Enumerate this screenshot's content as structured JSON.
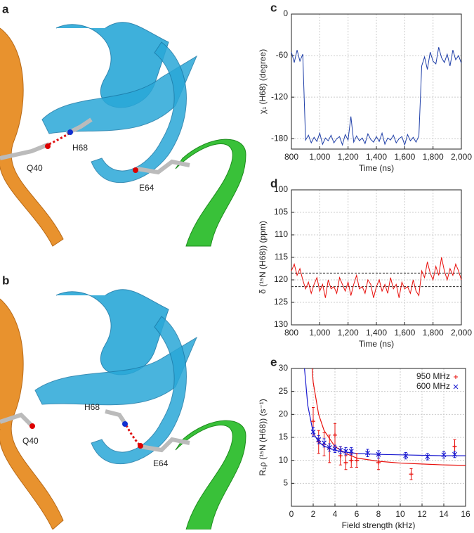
{
  "panels": {
    "a": {
      "label": "a",
      "residues": [
        "Q40",
        "H68",
        "E64"
      ]
    },
    "b": {
      "label": "b",
      "residues": [
        "Q40",
        "H68",
        "E64"
      ]
    }
  },
  "chart_data": [
    {
      "type": "line",
      "panel_label": "c",
      "xlabel": "Time (ns)",
      "ylabel": "χ₁ (H68) (degree)",
      "xlim": [
        800,
        2000
      ],
      "ylim": [
        -195,
        0
      ],
      "xticks": [
        800,
        {
          "value": 1000,
          "label": "1,000"
        },
        {
          "value": 1200,
          "label": "1,200"
        },
        {
          "value": 1400,
          "label": "1,400"
        },
        {
          "value": 1600,
          "label": "1,600"
        },
        {
          "value": 1800,
          "label": "1,800"
        },
        {
          "value": 2000,
          "label": "2,000"
        }
      ],
      "yticks": [
        0,
        -60,
        -120,
        -180
      ],
      "grid": true,
      "x": [
        800,
        820,
        840,
        860,
        880,
        900,
        920,
        940,
        960,
        980,
        1000,
        1020,
        1040,
        1060,
        1080,
        1100,
        1120,
        1140,
        1160,
        1180,
        1200,
        1220,
        1240,
        1260,
        1280,
        1300,
        1320,
        1340,
        1360,
        1380,
        1400,
        1420,
        1440,
        1460,
        1480,
        1500,
        1520,
        1540,
        1560,
        1580,
        1600,
        1620,
        1640,
        1660,
        1680,
        1700,
        1720,
        1740,
        1760,
        1780,
        1800,
        1820,
        1840,
        1860,
        1880,
        1900,
        1920,
        1940,
        1960,
        1980,
        2000
      ],
      "series": [
        {
          "color": "#1f3fa8",
          "values": [
            -55,
            -70,
            -52,
            -68,
            -58,
            -182,
            -175,
            -186,
            -178,
            -184,
            -172,
            -188,
            -179,
            -183,
            -175,
            -186,
            -180,
            -177,
            -189,
            -174,
            -182,
            -148,
            -185,
            -176,
            -183,
            -179,
            -187,
            -173,
            -181,
            -185,
            -177,
            -184,
            -172,
            -188,
            -179,
            -182,
            -175,
            -186,
            -180,
            -177,
            -189,
            -174,
            -183,
            -178,
            -185,
            -176,
            -75,
            -62,
            -80,
            -55,
            -68,
            -72,
            -48,
            -63,
            -70,
            -58,
            -75,
            -52,
            -66,
            -60,
            -71
          ]
        }
      ]
    },
    {
      "type": "line",
      "panel_label": "d",
      "xlabel": "Time (ns)",
      "ylabel": "δ (¹⁵N (H68)) (ppm)",
      "xlim": [
        800,
        2000
      ],
      "ylim": [
        130,
        100
      ],
      "xticks": [
        800,
        {
          "value": 1000,
          "label": "1,000"
        },
        {
          "value": 1200,
          "label": "1,200"
        },
        {
          "value": 1400,
          "label": "1,400"
        },
        {
          "value": 1600,
          "label": "1,600"
        },
        {
          "value": 1800,
          "label": "1,800"
        },
        {
          "value": 2000,
          "label": "2,000"
        }
      ],
      "yticks": [
        100,
        105,
        110,
        115,
        120,
        125,
        130
      ],
      "grid": true,
      "hlines": [
        118.5,
        121.5
      ],
      "x": [
        800,
        820,
        840,
        860,
        880,
        900,
        920,
        940,
        960,
        980,
        1000,
        1020,
        1040,
        1060,
        1080,
        1100,
        1120,
        1140,
        1160,
        1180,
        1200,
        1220,
        1240,
        1260,
        1280,
        1300,
        1320,
        1340,
        1360,
        1380,
        1400,
        1420,
        1440,
        1460,
        1480,
        1500,
        1520,
        1540,
        1560,
        1580,
        1600,
        1620,
        1640,
        1660,
        1680,
        1700,
        1720,
        1740,
        1760,
        1780,
        1800,
        1820,
        1840,
        1860,
        1880,
        1900,
        1920,
        1940,
        1960,
        1980,
        2000
      ],
      "series": [
        {
          "color": "#e8100c",
          "values": [
            118,
            116.5,
            119,
            117.5,
            120,
            122,
            120.5,
            123,
            121,
            119.5,
            122.5,
            121,
            124,
            120,
            122,
            121.5,
            123,
            119.5,
            121,
            122.5,
            120.5,
            123.5,
            121,
            119,
            122,
            121.5,
            123,
            120,
            121,
            124,
            121.5,
            120,
            122.5,
            121,
            123,
            119.5,
            122,
            121,
            124,
            120.5,
            122,
            121.5,
            123,
            120,
            122.5,
            123.5,
            118,
            119.5,
            116,
            118.5,
            120,
            117,
            119,
            115,
            118,
            120,
            117.5,
            119,
            116.5,
            118,
            120
          ]
        }
      ]
    },
    {
      "type": "scatter",
      "panel_label": "e",
      "xlabel": "Field strength (kHz)",
      "ylabel": "R₁ρ (¹⁵N (H68)) (s⁻¹)",
      "xlim": [
        0,
        16
      ],
      "ylim": [
        0,
        30
      ],
      "xticks": [
        0,
        2,
        4,
        6,
        8,
        10,
        12,
        14,
        16
      ],
      "yticks": [
        5,
        10,
        15,
        20,
        25,
        30
      ],
      "grid": true,
      "series": [
        {
          "name": "950 MHz",
          "color": "#e8100c",
          "marker": "plus",
          "x": [
            2,
            2.5,
            3,
            3.5,
            4,
            4.5,
            5,
            5.5,
            6,
            8,
            11,
            15
          ],
          "values": [
            18.5,
            14,
            13.5,
            12.5,
            15.5,
            11,
            9.5,
            10,
            10,
            9.5,
            7,
            13
          ],
          "errors": [
            3,
            2.5,
            2.5,
            3,
            2.5,
            2,
            1.5,
            1.5,
            1.5,
            1.5,
            1.2,
            1.5
          ]
        },
        {
          "name": "600 MHz",
          "color": "#1a1ad0",
          "marker": "cross",
          "x": [
            2,
            2.5,
            3,
            3.5,
            4,
            4.5,
            5,
            5.5,
            7,
            8,
            10.5,
            12.5,
            14,
            15
          ],
          "values": [
            16.2,
            14.5,
            13.8,
            12.8,
            12.5,
            12.2,
            12,
            12,
            11.6,
            11.3,
            11,
            10.8,
            11.2,
            11.3
          ],
          "errors": [
            1,
            0.9,
            0.9,
            0.8,
            0.8,
            0.8,
            0.8,
            0.8,
            0.8,
            0.8,
            0.7,
            0.7,
            0.7,
            0.7
          ]
        }
      ],
      "fits": [
        {
          "color": "#e8100c",
          "x": [
            1.9,
            2,
            2.5,
            3,
            4,
            5,
            6,
            8,
            10,
            12,
            14,
            16
          ],
          "values": [
            30,
            27,
            20,
            16.5,
            13,
            11.5,
            10.5,
            9.8,
            9.4,
            9.2,
            9,
            8.9
          ]
        },
        {
          "color": "#1a1ad0",
          "x": [
            1.2,
            1.5,
            2,
            2.5,
            3,
            4,
            5,
            6,
            8,
            10,
            12,
            14,
            16
          ],
          "values": [
            30,
            22,
            16,
            14,
            13.1,
            12.2,
            11.8,
            11.5,
            11.3,
            11.2,
            11.1,
            11,
            11
          ]
        }
      ]
    }
  ]
}
